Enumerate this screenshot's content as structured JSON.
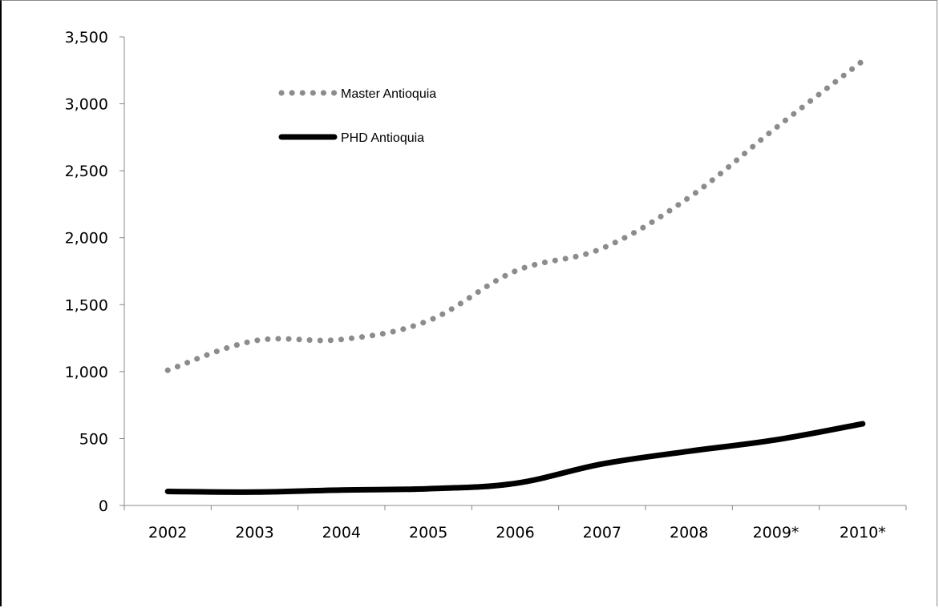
{
  "chart_data": {
    "type": "line",
    "title": "",
    "xlabel": "",
    "ylabel": "",
    "categories": [
      "2002",
      "2003",
      "2004",
      "2005",
      "2006",
      "2007",
      "2008",
      "2009*",
      "2010*"
    ],
    "y_tick_labels": [
      "0",
      "500",
      "1,000",
      "1,500",
      "2,000",
      "2,500",
      "3,000",
      "3,500"
    ],
    "y_tick_values": [
      0,
      500,
      1000,
      1500,
      2000,
      2500,
      3000,
      3500
    ],
    "ylim": [
      0,
      3500
    ],
    "grid": false,
    "legend_position": "top-left",
    "series": [
      {
        "name": "Master Antioquia",
        "style": "dotted",
        "color": "#8c8c8c",
        "values": [
          1010,
          1230,
          1240,
          1380,
          1750,
          1920,
          2300,
          2820,
          3320
        ]
      },
      {
        "name": "PHD Antioquia",
        "style": "solid",
        "color": "#000000",
        "values": [
          105,
          100,
          115,
          125,
          165,
          310,
          405,
          490,
          610
        ]
      }
    ]
  }
}
